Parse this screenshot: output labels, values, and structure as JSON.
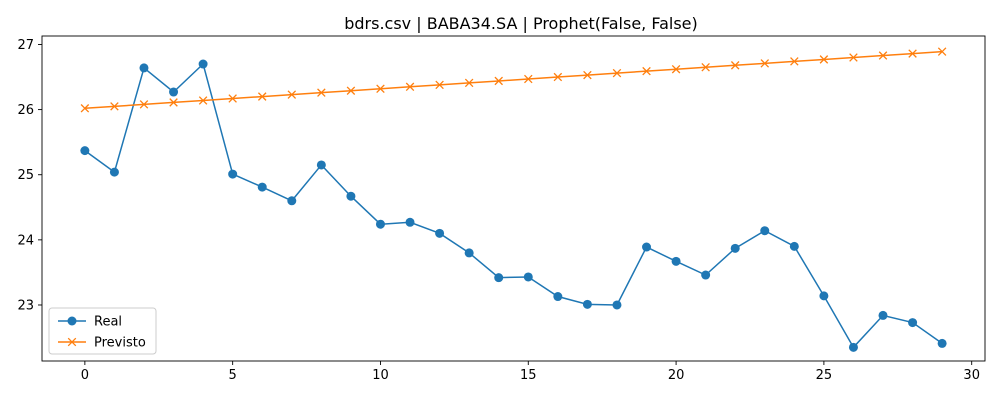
{
  "chart_data": {
    "type": "line",
    "title": "bdrs.csv | BABA34.SA | Prophet(False, False)",
    "xlabel": "",
    "ylabel": "",
    "xlim": [
      -1.45,
      30.45
    ],
    "ylim": [
      22.14,
      27.13
    ],
    "xticks": [
      0,
      5,
      10,
      15,
      20,
      25,
      30
    ],
    "yticks": [
      23,
      24,
      25,
      26,
      27
    ],
    "grid": false,
    "legend_position": "lower-left",
    "x": [
      0,
      1,
      2,
      3,
      4,
      5,
      6,
      7,
      8,
      9,
      10,
      11,
      12,
      13,
      14,
      15,
      16,
      17,
      18,
      19,
      20,
      21,
      22,
      23,
      24,
      25,
      26,
      27,
      28,
      29
    ],
    "series": [
      {
        "name": "Real",
        "color": "#1f77b4",
        "marker": "circle",
        "values": [
          25.37,
          25.04,
          26.64,
          26.27,
          26.7,
          25.01,
          24.81,
          24.6,
          25.15,
          24.67,
          24.24,
          24.27,
          24.1,
          23.8,
          23.42,
          23.43,
          23.13,
          23.01,
          23.0,
          23.89,
          23.67,
          23.46,
          23.87,
          24.14,
          23.9,
          23.14,
          22.35,
          22.84,
          22.73,
          22.41
        ]
      },
      {
        "name": "Previsto",
        "color": "#ff7f0e",
        "marker": "x",
        "values": [
          26.02,
          26.05,
          26.08,
          26.11,
          26.14,
          26.17,
          26.2,
          26.23,
          26.26,
          26.29,
          26.32,
          26.35,
          26.38,
          26.41,
          26.44,
          26.47,
          26.5,
          26.53,
          26.56,
          26.59,
          26.62,
          26.65,
          26.68,
          26.71,
          26.74,
          26.77,
          26.8,
          26.83,
          26.86,
          26.89
        ]
      }
    ]
  }
}
